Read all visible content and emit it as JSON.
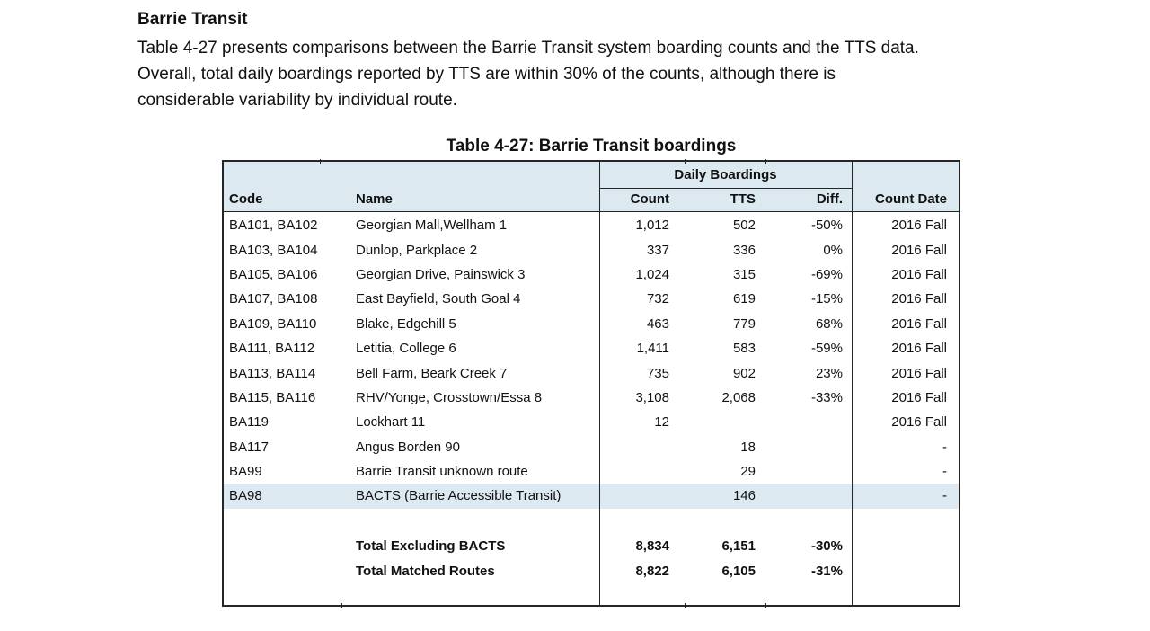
{
  "intro": {
    "heading": "Barrie Transit",
    "paragraph_lines": [
      "Table 4-27 presents comparisons between the Barrie Transit system boarding counts and the TTS data.",
      "Overall, total daily boardings reported by TTS are within 30% of the counts, although there is",
      "considerable variability by individual route."
    ]
  },
  "table": {
    "title": "Table 4-27: Barrie Transit boardings",
    "group_header": "Daily Boardings",
    "columns": {
      "code": "Code",
      "name": "Name",
      "count": "Count",
      "tts": "TTS",
      "diff": "Diff.",
      "date": "Count Date"
    },
    "rows": [
      {
        "code": "BA101, BA102",
        "name": "Georgian Mall,Wellham 1",
        "count": "1,012",
        "tts": "502",
        "diff": "-50%",
        "date": "2016 Fall",
        "highlight": false
      },
      {
        "code": "BA103, BA104",
        "name": "Dunlop, Parkplace 2",
        "count": "337",
        "tts": "336",
        "diff": "0%",
        "date": "2016 Fall",
        "highlight": false
      },
      {
        "code": "BA105, BA106",
        "name": "Georgian Drive, Painswick 3",
        "count": "1,024",
        "tts": "315",
        "diff": "-69%",
        "date": "2016 Fall",
        "highlight": false
      },
      {
        "code": "BA107, BA108",
        "name": "East Bayfield, South Goal 4",
        "count": "732",
        "tts": "619",
        "diff": "-15%",
        "date": "2016 Fall",
        "highlight": false
      },
      {
        "code": "BA109, BA110",
        "name": "Blake, Edgehill 5",
        "count": "463",
        "tts": "779",
        "diff": "68%",
        "date": "2016 Fall",
        "highlight": false
      },
      {
        "code": "BA111, BA112",
        "name": "Letitia, College 6",
        "count": "1,411",
        "tts": "583",
        "diff": "-59%",
        "date": "2016 Fall",
        "highlight": false
      },
      {
        "code": "BA113, BA114",
        "name": "Bell Farm, Beark Creek 7",
        "count": "735",
        "tts": "902",
        "diff": "23%",
        "date": "2016 Fall",
        "highlight": false
      },
      {
        "code": "BA115, BA116",
        "name": "RHV/Yonge, Crosstown/Essa 8",
        "count": "3,108",
        "tts": "2,068",
        "diff": "-33%",
        "date": "2016 Fall",
        "highlight": false
      },
      {
        "code": "BA119",
        "name": "Lockhart 11",
        "count": "12",
        "tts": "",
        "diff": "",
        "date": "2016 Fall",
        "highlight": false
      },
      {
        "code": "BA117",
        "name": "Angus Borden 90",
        "count": "",
        "tts": "18",
        "diff": "",
        "date": "-",
        "highlight": false
      },
      {
        "code": "BA99",
        "name": "Barrie Transit unknown route",
        "count": "",
        "tts": "29",
        "diff": "",
        "date": "-",
        "highlight": false
      },
      {
        "code": "BA98",
        "name": "BACTS (Barrie Accessible Transit)",
        "count": "",
        "tts": "146",
        "diff": "",
        "date": "-",
        "highlight": true
      }
    ],
    "totals": [
      {
        "code": "",
        "name": "Total Excluding BACTS",
        "count": "8,834",
        "tts": "6,151",
        "diff": "-30%",
        "date": ""
      },
      {
        "code": "",
        "name": "Total Matched Routes",
        "count": "8,822",
        "tts": "6,105",
        "diff": "-31%",
        "date": ""
      }
    ],
    "colors": {
      "header_fill": "#dce9f1",
      "highlight_fill": "#dce9f1",
      "border": "#262626",
      "text": "#111111"
    }
  }
}
